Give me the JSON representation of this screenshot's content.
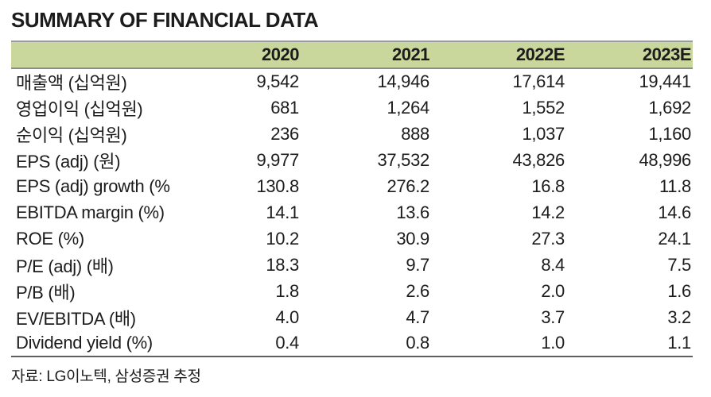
{
  "title": "SUMMARY OF FINANCIAL DATA",
  "colors": {
    "header_bg": "#c9d69c",
    "border_top": "#9a9d9e",
    "border_header": "#8b8e8f",
    "border_bottom": "#5f5f5f",
    "text": "#1c1c1c"
  },
  "table": {
    "columns": [
      "",
      "2020",
      "2021",
      "2022E",
      "2023E"
    ],
    "rows": [
      {
        "label": "매출액 (십억원)",
        "values": [
          "9,542",
          "14,946",
          "17,614",
          "19,441"
        ]
      },
      {
        "label": "영업이익 (십억원)",
        "values": [
          "681",
          "1,264",
          "1,552",
          "1,692"
        ]
      },
      {
        "label": "순이익 (십억원)",
        "values": [
          "236",
          "888",
          "1,037",
          "1,160"
        ]
      },
      {
        "label": "EPS (adj) (원)",
        "values": [
          "9,977",
          "37,532",
          "43,826",
          "48,996"
        ]
      },
      {
        "label": "EPS (adj) growth (%)",
        "values": [
          "130.8",
          "276.2",
          "16.8",
          "11.8"
        ]
      },
      {
        "label": "EBITDA margin (%)",
        "values": [
          "14.1",
          "13.6",
          "14.2",
          "14.6"
        ]
      },
      {
        "label": "ROE (%)",
        "values": [
          "10.2",
          "30.9",
          "27.3",
          "24.1"
        ]
      },
      {
        "label": "P/E (adj) (배)",
        "values": [
          "18.3",
          "9.7",
          "8.4",
          "7.5"
        ]
      },
      {
        "label": "P/B (배)",
        "values": [
          "1.8",
          "2.6",
          "2.0",
          "1.6"
        ]
      },
      {
        "label": "EV/EBITDA (배)",
        "values": [
          "4.0",
          "4.7",
          "3.7",
          "3.2"
        ]
      },
      {
        "label": "Dividend yield (%)",
        "values": [
          "0.4",
          "0.8",
          "1.0",
          "1.1"
        ]
      }
    ]
  },
  "footer": {
    "source": "자료: LG이노텍, 삼성증권 추정"
  }
}
